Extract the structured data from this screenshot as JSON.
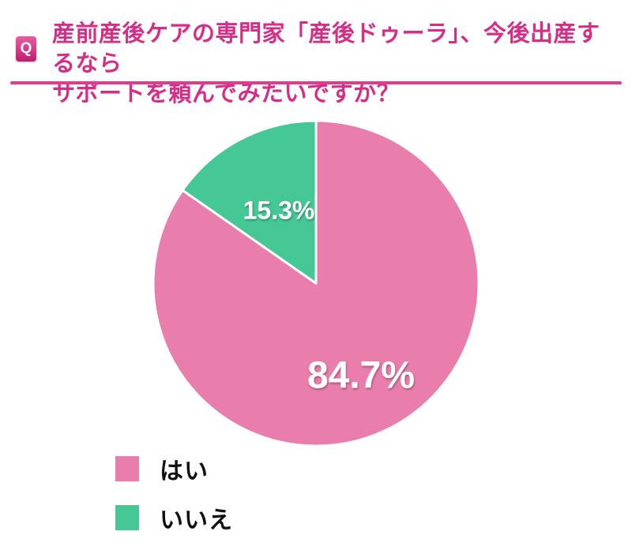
{
  "header": {
    "q_badge": "Q",
    "title_line1": "産前産後ケアの専門家「産後ドゥーラ」、今後出産するなら",
    "title_line2": "サポートを頼んでみたいですか？",
    "accent_color": "#d62d87",
    "divider_color": "#e13a8e"
  },
  "chart_data": {
    "type": "pie",
    "title": "産前産後ケアの専門家「産後ドゥーラ」、今後出産するならサポートを頼んでみたいですか？",
    "categories": [
      "はい",
      "いいえ"
    ],
    "values": [
      84.7,
      15.3
    ],
    "labels": [
      "84.7%",
      "15.3%"
    ],
    "colors": [
      "#e97dac",
      "#45c796"
    ],
    "start_angle_deg": 0,
    "direction": "clockwise",
    "slice_gap_color": "#ffffff",
    "label_color": "#ffffff",
    "legend_position": "bottom-left"
  },
  "legend": {
    "items": [
      {
        "label": "はい",
        "color": "#e97dac"
      },
      {
        "label": "いいえ",
        "color": "#45c796"
      }
    ]
  }
}
